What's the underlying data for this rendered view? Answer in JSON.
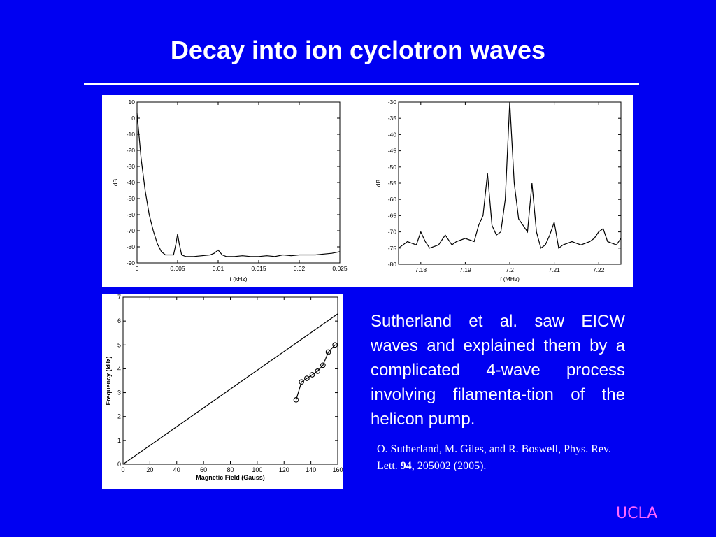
{
  "slide": {
    "title": "Decay into ion cyclotron waves",
    "body_text": "Sutherland et al. saw EICW waves and explained them by a complicated 4-wave process involving filamenta-tion of the helicon pump.",
    "citation_prefix": "O. Sutherland, M. Giles, and R. Boswell, Phys. Rev. Lett. ",
    "citation_volume": "94",
    "citation_suffix": ", 205002 (2005).",
    "logo_text": "UCLA",
    "colors": {
      "background": "#0000f2",
      "text": "#ffffff",
      "logo": "#ff66ff",
      "figure_bg": "#ffffff"
    }
  },
  "chart_data": [
    {
      "type": "line",
      "xlabel": "f (kHz)",
      "ylabel": "dB",
      "xlim": [
        0,
        0.025
      ],
      "ylim": [
        -90,
        10
      ],
      "xticks": [
        0,
        0.005,
        0.01,
        0.015,
        0.02,
        0.025
      ],
      "xtick_labels": [
        "0",
        "0.005",
        "0.01",
        "0.015",
        "0.02",
        "0.025"
      ],
      "yticks": [
        10,
        0,
        -10,
        -20,
        -30,
        -40,
        -50,
        -60,
        -70,
        -80,
        -90
      ],
      "grid": false,
      "series": [
        {
          "x": [
            0,
            0.0005,
            0.001,
            0.0015,
            0.002,
            0.0025,
            0.003,
            0.0035,
            0.004,
            0.0045,
            0.0048,
            0.005,
            0.0052,
            0.0055,
            0.006,
            0.007,
            0.008,
            0.009,
            0.0095,
            0.01,
            0.0105,
            0.011,
            0.012,
            0.013,
            0.014,
            0.015,
            0.016,
            0.017,
            0.018,
            0.019,
            0.02,
            0.021,
            0.022,
            0.023,
            0.024,
            0.025
          ],
          "y": [
            3,
            -25,
            -45,
            -60,
            -70,
            -78,
            -83,
            -85,
            -85,
            -85,
            -78,
            -72,
            -78,
            -85,
            -86,
            -86,
            -85.5,
            -85,
            -84,
            -82,
            -85,
            -86,
            -86,
            -85.5,
            -86,
            -86,
            -85.5,
            -86,
            -85,
            -85.5,
            -85,
            -85,
            -85,
            -84.5,
            -84,
            -83
          ]
        }
      ]
    },
    {
      "type": "line",
      "xlabel": "f (MHz)",
      "ylabel": "dB",
      "xlim": [
        7.175,
        7.225
      ],
      "ylim": [
        -80,
        -30
      ],
      "xticks": [
        7.18,
        7.19,
        7.2,
        7.21,
        7.22
      ],
      "xtick_labels": [
        "7.18",
        "7.19",
        "7.2",
        "7.21",
        "7.22"
      ],
      "yticks": [
        -30,
        -35,
        -40,
        -45,
        -50,
        -55,
        -60,
        -65,
        -70,
        -75,
        -80
      ],
      "grid": false,
      "series": [
        {
          "x": [
            7.175,
            7.177,
            7.179,
            7.18,
            7.181,
            7.182,
            7.184,
            7.1855,
            7.187,
            7.188,
            7.19,
            7.192,
            7.193,
            7.194,
            7.195,
            7.196,
            7.197,
            7.198,
            7.199,
            7.2,
            7.201,
            7.202,
            7.203,
            7.204,
            7.205,
            7.206,
            7.207,
            7.208,
            7.209,
            7.21,
            7.211,
            7.212,
            7.214,
            7.216,
            7.218,
            7.219,
            7.22,
            7.221,
            7.222,
            7.224,
            7.225
          ],
          "y": [
            -75,
            -73,
            -74,
            -70,
            -73,
            -75,
            -74,
            -71,
            -74,
            -73,
            -72,
            -73,
            -68,
            -65,
            -52,
            -68,
            -71,
            -70,
            -60,
            -30,
            -55,
            -66,
            -68,
            -70,
            -55,
            -70,
            -75,
            -74,
            -71,
            -67,
            -75,
            -74,
            -73,
            -74,
            -73,
            -72,
            -70,
            -69,
            -73,
            -74,
            -72
          ]
        }
      ]
    },
    {
      "type": "scatter",
      "xlabel": "Magnetic Field (Gauss)",
      "ylabel": "Frequency (kHz)",
      "xlim": [
        0,
        160
      ],
      "ylim": [
        0,
        7
      ],
      "xticks": [
        0,
        20,
        40,
        60,
        80,
        100,
        120,
        140,
        160
      ],
      "xtick_labels": [
        "0",
        "20",
        "40",
        "60",
        "80",
        "100",
        "120",
        "140",
        "160"
      ],
      "yticks": [
        0,
        1,
        2,
        3,
        4,
        5,
        6,
        7
      ],
      "grid": false,
      "series": [
        {
          "type": "line",
          "x": [
            0,
            160
          ],
          "y": [
            0,
            6.3
          ]
        },
        {
          "type": "scatter",
          "x": [
            129,
            133,
            137,
            141,
            145,
            149,
            153,
            158
          ],
          "y": [
            2.7,
            3.45,
            3.6,
            3.75,
            3.9,
            4.15,
            4.7,
            5.0
          ]
        }
      ]
    }
  ]
}
